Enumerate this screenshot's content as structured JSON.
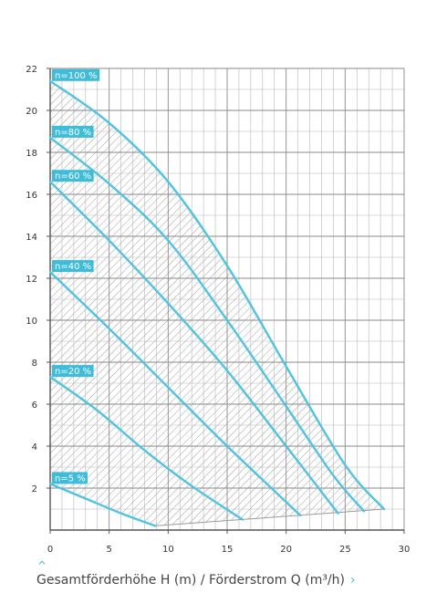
{
  "caption": {
    "text": "Gesamtförderhöhe H (m) / Förderstrom Q (m³/h)",
    "up_icon": "^",
    "right_icon": "›"
  },
  "colors": {
    "curve": "#4fc3e0",
    "label_bg": "#3fbcd9",
    "grid": "#b8b8b8",
    "axis": "#555555",
    "hatch": "#a0a0a0"
  },
  "chart_data": {
    "type": "line",
    "xlim": [
      0,
      30
    ],
    "ylim": [
      0,
      22
    ],
    "x_ticks": [
      0,
      5,
      10,
      15,
      20,
      25,
      30
    ],
    "y_ticks": [
      2,
      4,
      6,
      8,
      10,
      12,
      14,
      16,
      18,
      20,
      22
    ],
    "x_minor_step": 1,
    "y_minor_step": 1,
    "grid": true,
    "series": [
      {
        "name": "n=100 %",
        "x": [
          0,
          5,
          10,
          15,
          20,
          25,
          28.3
        ],
        "y": [
          21.4,
          19.4,
          16.6,
          12.6,
          7.8,
          3.1,
          1.0
        ]
      },
      {
        "name": "n=80 %",
        "x": [
          0,
          5,
          10,
          15,
          20,
          24,
          26.6
        ],
        "y": [
          18.7,
          16.5,
          13.8,
          10.0,
          5.9,
          2.6,
          0.9
        ]
      },
      {
        "name": "n=60 %",
        "x": [
          0,
          5,
          10,
          15,
          20,
          24.4
        ],
        "y": [
          16.6,
          13.8,
          10.8,
          7.6,
          4.0,
          0.8
        ]
      },
      {
        "name": "n=40 %",
        "x": [
          0,
          5,
          10,
          15,
          21.2
        ],
        "y": [
          12.3,
          9.6,
          6.8,
          4.0,
          0.7
        ]
      },
      {
        "name": "n=20 %",
        "x": [
          0,
          4,
          8,
          12,
          16.3
        ],
        "y": [
          7.3,
          5.7,
          3.8,
          2.1,
          0.5
        ]
      },
      {
        "name": "n=5 %",
        "x": [
          0,
          3,
          6,
          8.9
        ],
        "y": [
          2.2,
          1.5,
          0.8,
          0.2
        ]
      }
    ],
    "operating_range_lower_edge": {
      "x": [
        8.9,
        28.3
      ],
      "y": [
        0.2,
        1.0
      ]
    }
  }
}
